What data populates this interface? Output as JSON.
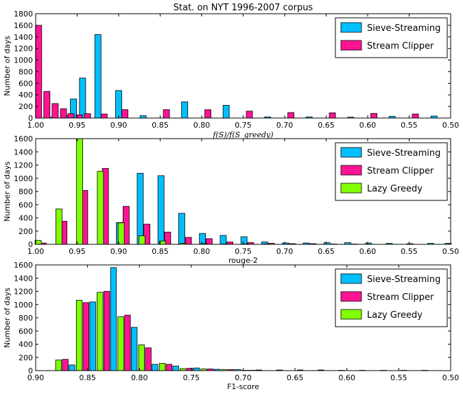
{
  "colors": {
    "sieve": "#00bfff",
    "clipper": "#ff1493",
    "lazy": "#7fff00"
  },
  "chart_data": [
    {
      "type": "bar",
      "title": "Stat. on NYT 1996-2007 corpus",
      "xlabel": "f(S)/f(S_greedy)",
      "ylabel": "Number of days",
      "xlim": [
        1.0,
        0.5
      ],
      "ylim": [
        0,
        1800
      ],
      "xticks": [
        "1.00",
        "0.95",
        "0.90",
        "0.85",
        "0.80",
        "0.75",
        "0.70",
        "0.65",
        "0.60",
        "0.55",
        "0.50"
      ],
      "yticks": [
        "0",
        "200",
        "400",
        "600",
        "800",
        "1000",
        "1200",
        "1400",
        "1600",
        "1800"
      ],
      "legend": "top-right",
      "series": [
        {
          "name": "Sieve-Streaming",
          "color_key": "sieve",
          "x": [
            0.9835,
            0.9635,
            0.9545,
            0.9435,
            0.925,
            0.9,
            0.8705,
            0.8205,
            0.7705,
            0.7205,
            0.6705,
            0.6205,
            0.5705,
            0.52
          ],
          "values": [
            15,
            40,
            330,
            690,
            1440,
            475,
            40,
            280,
            220,
            20,
            20,
            15,
            30,
            35
          ]
        },
        {
          "name": "Stream Clipper",
          "color_key": "clipper",
          "x": [
            0.9965,
            0.9865,
            0.9765,
            0.9665,
            0.9575,
            0.9475,
            0.9375,
            0.9175,
            0.8925,
            0.8425,
            0.7925,
            0.7425,
            0.6925,
            0.6425,
            0.5925,
            0.5425
          ],
          "values": [
            1600,
            460,
            250,
            160,
            75,
            55,
            75,
            70,
            145,
            145,
            145,
            120,
            95,
            90,
            80,
            70
          ]
        }
      ]
    },
    {
      "type": "bar",
      "title": "",
      "xlabel": "rouge-2",
      "ylabel": "Number of days",
      "xlim": [
        1.0,
        0.5
      ],
      "ylim": [
        0,
        1600
      ],
      "xticks": [
        "1.00",
        "0.95",
        "0.90",
        "0.85",
        "0.80",
        "0.75",
        "0.70",
        "0.65",
        "0.60",
        "0.55",
        "0.50"
      ],
      "yticks": [
        "0",
        "200",
        "400",
        "600",
        "800",
        "1000",
        "1200",
        "1400",
        "1600"
      ],
      "legend": "top-right",
      "series": [
        {
          "name": "Sieve-Streaming",
          "color_key": "sieve",
          "x": [
            0.899,
            0.874,
            0.849,
            0.824,
            0.799,
            0.774,
            0.749,
            0.724,
            0.699,
            0.674,
            0.649,
            0.624,
            0.599,
            0.574,
            0.549,
            0.524,
            0.503
          ],
          "values": [
            330,
            1075,
            1040,
            470,
            165,
            135,
            115,
            35,
            20,
            20,
            25,
            25,
            20,
            15,
            10,
            15,
            15
          ]
        },
        {
          "name": "Stream Clipper",
          "color_key": "clipper",
          "x": [
            0.991,
            0.966,
            0.941,
            0.916,
            0.891,
            0.866,
            0.841,
            0.816,
            0.791,
            0.766,
            0.741,
            0.716,
            0.691,
            0.666,
            0.641,
            0.616
          ],
          "values": [
            20,
            350,
            815,
            1150,
            575,
            305,
            185,
            105,
            85,
            35,
            25,
            15,
            10,
            10,
            5,
            5
          ]
        },
        {
          "name": "Lazy Greedy",
          "color_key": "lazy",
          "x": [
            0.997,
            0.972,
            0.947,
            0.922,
            0.897,
            0.872,
            0.847,
            0.822,
            0.797,
            0.772,
            0.747,
            0.722
          ],
          "values": [
            60,
            535,
            1600,
            1105,
            325,
            130,
            50,
            15,
            10,
            5,
            5,
            5
          ]
        }
      ]
    },
    {
      "type": "bar",
      "title": "",
      "xlabel": "F1-score",
      "ylabel": "Number of days",
      "xlim": [
        0.9,
        0.5
      ],
      "ylim": [
        0,
        1600
      ],
      "xticks": [
        "0.90",
        "0.85",
        "0.80",
        "0.75",
        "0.70",
        "0.65",
        "0.60",
        "0.55",
        "0.50"
      ],
      "yticks": [
        "0",
        "200",
        "400",
        "600",
        "800",
        "1000",
        "1200",
        "1400",
        "1600"
      ],
      "legend": "top-right",
      "series": [
        {
          "name": "Sieve-Streaming",
          "color_key": "sieve",
          "x": [
            0.865,
            0.845,
            0.825,
            0.805,
            0.785,
            0.765,
            0.745,
            0.725,
            0.705,
            0.685,
            0.665,
            0.645,
            0.625,
            0.605,
            0.585,
            0.565,
            0.545,
            0.525
          ],
          "values": [
            85,
            1040,
            1560,
            655,
            95,
            70,
            40,
            20,
            15,
            10,
            10,
            10,
            10,
            5,
            5,
            5,
            5,
            5
          ]
        },
        {
          "name": "Stream Clipper",
          "color_key": "clipper",
          "x": [
            0.8715,
            0.8515,
            0.8315,
            0.8115,
            0.7915,
            0.7715,
            0.7515,
            0.7315,
            0.7115,
            0.6915
          ],
          "values": [
            170,
            1030,
            1200,
            840,
            345,
            95,
            35,
            25,
            15,
            5
          ]
        },
        {
          "name": "Lazy Greedy",
          "color_key": "lazy",
          "x": [
            0.878,
            0.858,
            0.838,
            0.818,
            0.798,
            0.778,
            0.758,
            0.738,
            0.718,
            0.698
          ],
          "values": [
            160,
            1065,
            1185,
            815,
            390,
            110,
            30,
            25,
            15,
            5
          ]
        }
      ]
    }
  ]
}
